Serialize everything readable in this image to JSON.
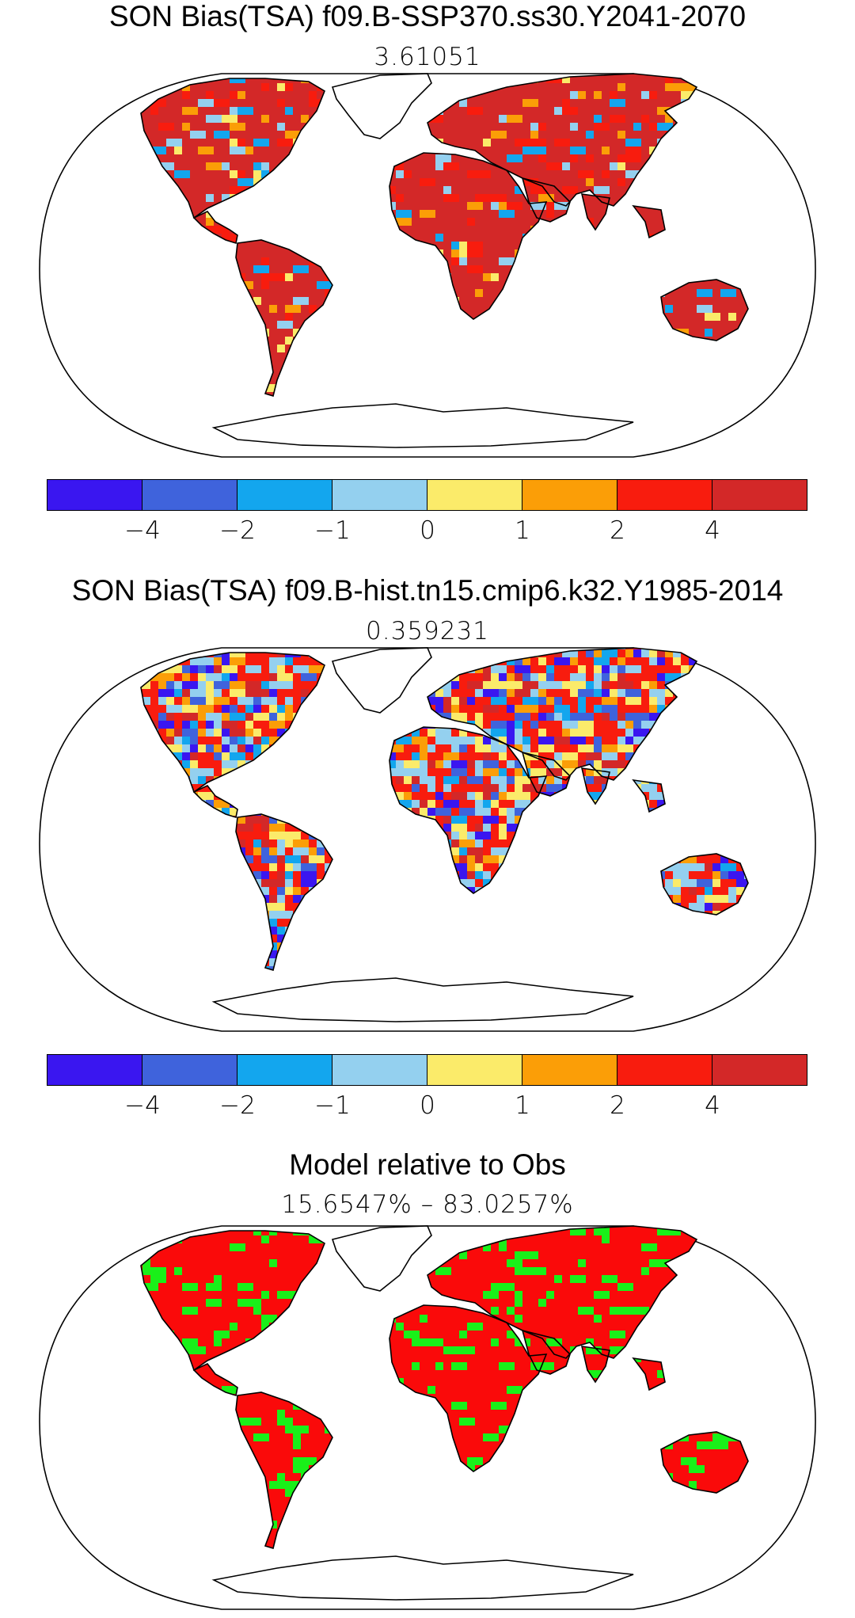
{
  "panels": [
    {
      "title": "SON Bias(TSA) f09.B-SSP370.ss30.Y2041-2070",
      "subtitle": "3.61051",
      "scheme": "warm"
    },
    {
      "title": "SON Bias(TSA) f09.B-hist.tn15.cmip6.k32.Y1985-2014",
      "subtitle": "0.359231",
      "scheme": "mixed"
    },
    {
      "title": "Model relative to Obs",
      "subtitle": "15.6547% – 83.0257%",
      "scheme": "binary"
    }
  ],
  "colorbar": {
    "colors": [
      "#3a16f0",
      "#3f63dc",
      "#13a6ee",
      "#94d0ef",
      "#fbeb6a",
      "#fb9e07",
      "#f81c0e",
      "#d32828"
    ],
    "tick_labels": [
      "−4",
      "−2",
      "−1",
      "0",
      "1",
      "2",
      "4"
    ]
  },
  "binary_colors": {
    "worse": "#fa0a0a",
    "better": "#19f019"
  }
}
